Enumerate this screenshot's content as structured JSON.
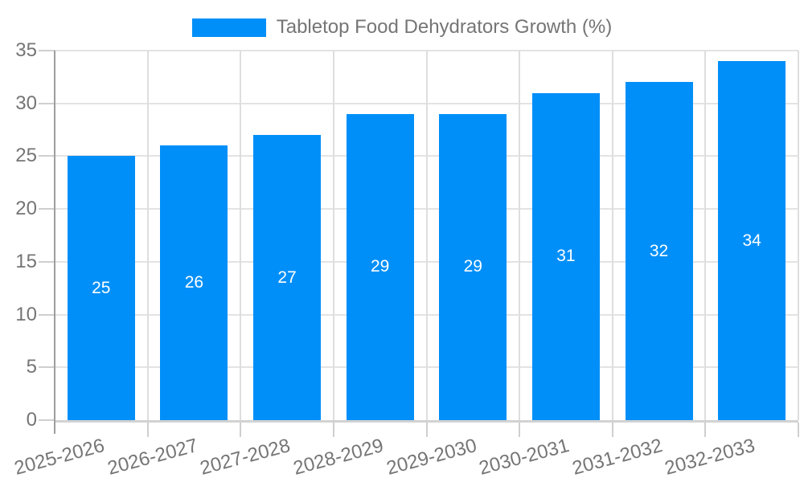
{
  "legend": {
    "items": [
      {
        "label": "Tabletop Food Dehydrators Growth (%)",
        "color": "#008ff8"
      }
    ]
  },
  "chart_data": {
    "type": "bar",
    "title": "Tabletop Food Dehydrators Growth (%)",
    "categories": [
      "2025-2026",
      "2026-2027",
      "2027-2028",
      "2028-2029",
      "2029-2030",
      "2030-2031",
      "2031-2032",
      "2032-2033"
    ],
    "values": [
      25,
      26,
      27,
      29,
      29,
      31,
      32,
      34
    ],
    "value_labels": [
      "25",
      "26",
      "27",
      "29",
      "29",
      "31",
      "32",
      "34"
    ],
    "xlabel": "",
    "ylabel": "",
    "ylim": [
      0,
      35
    ],
    "yticks": [
      0,
      5,
      10,
      15,
      20,
      25,
      30,
      35
    ],
    "grid": true,
    "legend_position": "top",
    "x_label_rotation_deg": -15,
    "colors": {
      "bar": "#008ff8",
      "axis_line": "#9e9e9e",
      "gridline_h": "#e3e3e3",
      "gridline_v": "#dedede",
      "baseline": "#d2d2d2",
      "tick": "#cfcfcf",
      "axis_label": "#757575",
      "value_label": "#ffffff",
      "background": "#ffffff"
    }
  }
}
